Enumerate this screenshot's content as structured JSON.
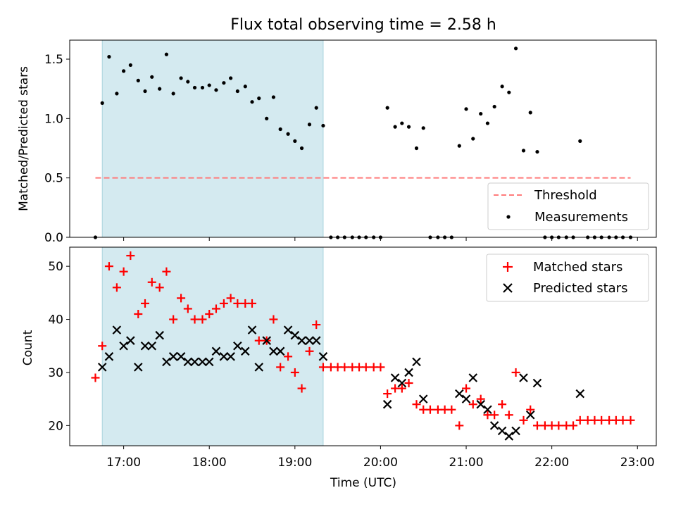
{
  "chart_data": [
    {
      "type": "scatter",
      "title": "Flux total observing time = 2.58 h",
      "ylabel": "Matched/Predicted stars",
      "xlabel": "",
      "xlim": [
        16.37,
        23.22
      ],
      "ylim": [
        0.0,
        1.66
      ],
      "yticks": [
        0.0,
        0.5,
        1.0,
        1.5
      ],
      "ytick_labels": [
        "0.0",
        "0.5",
        "1.0",
        "1.5"
      ],
      "shaded_span": [
        16.75,
        19.33
      ],
      "shade_color": "#d4eaf0",
      "legend_position": "lower-right",
      "series": [
        {
          "name": "Threshold",
          "kind": "dashed-line",
          "color": "#ff7b7b",
          "x": [
            16.67,
            22.92
          ],
          "y": [
            0.5,
            0.5
          ]
        },
        {
          "name": "Measurements",
          "kind": "points",
          "color": "#000000",
          "x": [
            16.67,
            16.75,
            16.83,
            16.92,
            17.0,
            17.08,
            17.17,
            17.25,
            17.33,
            17.42,
            17.5,
            17.58,
            17.67,
            17.75,
            17.83,
            17.92,
            18.0,
            18.08,
            18.17,
            18.25,
            18.33,
            18.42,
            18.5,
            18.58,
            18.67,
            18.75,
            18.83,
            18.92,
            19.0,
            19.08,
            19.17,
            19.25,
            19.33,
            19.42,
            19.5,
            19.58,
            19.67,
            19.75,
            19.83,
            19.92,
            20.0,
            20.08,
            20.17,
            20.25,
            20.33,
            20.42,
            20.5,
            20.58,
            20.67,
            20.75,
            20.83,
            20.92,
            21.0,
            21.08,
            21.17,
            21.25,
            21.33,
            21.42,
            21.5,
            21.58,
            21.67,
            21.75,
            21.83,
            21.92,
            22.0,
            22.08,
            22.17,
            22.25,
            22.33,
            22.42,
            22.5,
            22.58,
            22.67,
            22.75,
            22.83,
            22.92
          ],
          "y": [
            0.0,
            1.13,
            1.52,
            1.21,
            1.4,
            1.45,
            1.32,
            1.23,
            1.35,
            1.25,
            1.54,
            1.21,
            1.34,
            1.31,
            1.26,
            1.26,
            1.28,
            1.24,
            1.3,
            1.34,
            1.23,
            1.27,
            1.14,
            1.17,
            1.0,
            1.18,
            0.91,
            0.87,
            0.81,
            0.75,
            0.95,
            1.09,
            0.94,
            0.0,
            0.0,
            0.0,
            0.0,
            0.0,
            0.0,
            0.0,
            0.0,
            1.09,
            0.93,
            0.96,
            0.93,
            0.75,
            0.92,
            0.0,
            0.0,
            0.0,
            0.0,
            0.77,
            1.08,
            0.83,
            1.04,
            0.96,
            1.1,
            1.27,
            1.22,
            1.59,
            0.73,
            1.05,
            0.72,
            0.0,
            0.0,
            0.0,
            0.0,
            0.0,
            0.81,
            0.0,
            0.0,
            0.0,
            0.0,
            0.0,
            0.0,
            0.0
          ]
        }
      ]
    },
    {
      "type": "scatter",
      "title": "",
      "ylabel": "Count",
      "xlabel": "Time (UTC)",
      "xlim": [
        16.37,
        23.22
      ],
      "ylim": [
        16.2,
        53.6
      ],
      "yticks": [
        20,
        30,
        40,
        50
      ],
      "ytick_labels": [
        "20",
        "30",
        "40",
        "50"
      ],
      "xticks": [
        17,
        18,
        19,
        20,
        21,
        22,
        23
      ],
      "xtick_labels": [
        "17:00",
        "18:00",
        "19:00",
        "20:00",
        "21:00",
        "22:00",
        "23:00"
      ],
      "shaded_span": [
        16.75,
        19.33
      ],
      "shade_color": "#d4eaf0",
      "legend_position": "upper-right",
      "series": [
        {
          "name": "Matched stars",
          "kind": "plus",
          "color": "#ff0000",
          "x": [
            16.67,
            16.75,
            16.83,
            16.92,
            17.0,
            17.08,
            17.17,
            17.25,
            17.33,
            17.42,
            17.5,
            17.58,
            17.67,
            17.75,
            17.83,
            17.92,
            18.0,
            18.08,
            18.17,
            18.25,
            18.33,
            18.42,
            18.5,
            18.58,
            18.67,
            18.75,
            18.83,
            18.92,
            19.0,
            19.08,
            19.17,
            19.25,
            19.33,
            19.42,
            19.5,
            19.58,
            19.67,
            19.75,
            19.83,
            19.92,
            20.0,
            20.08,
            20.17,
            20.25,
            20.33,
            20.42,
            20.5,
            20.58,
            20.67,
            20.75,
            20.83,
            20.92,
            21.0,
            21.08,
            21.17,
            21.25,
            21.33,
            21.42,
            21.5,
            21.58,
            21.67,
            21.75,
            21.83,
            21.92,
            22.0,
            22.08,
            22.17,
            22.25,
            22.33,
            22.42,
            22.5,
            22.58,
            22.67,
            22.75,
            22.83,
            22.92
          ],
          "y": [
            29,
            35,
            50,
            46,
            49,
            52,
            41,
            43,
            47,
            46,
            49,
            40,
            44,
            42,
            40,
            40,
            41,
            42,
            43,
            44,
            43,
            43,
            43,
            36,
            36,
            40,
            31,
            33,
            30,
            27,
            34,
            39,
            31,
            31,
            31,
            31,
            31,
            31,
            31,
            31,
            31,
            26,
            27,
            27,
            28,
            24,
            23,
            23,
            23,
            23,
            23,
            20,
            27,
            24,
            25,
            22,
            22,
            24,
            22,
            30,
            21,
            23,
            20,
            20,
            20,
            20,
            20,
            20,
            21,
            21,
            21,
            21,
            21,
            21,
            21,
            21
          ]
        },
        {
          "name": "Predicted stars",
          "kind": "x",
          "color": "#000000",
          "x": [
            16.75,
            16.83,
            16.92,
            17.0,
            17.08,
            17.17,
            17.25,
            17.33,
            17.42,
            17.5,
            17.58,
            17.67,
            17.75,
            17.83,
            17.92,
            18.0,
            18.08,
            18.17,
            18.25,
            18.33,
            18.42,
            18.5,
            18.58,
            18.67,
            18.75,
            18.83,
            18.92,
            19.0,
            19.08,
            19.17,
            19.25,
            19.33,
            20.08,
            20.17,
            20.25,
            20.33,
            20.42,
            20.5,
            20.92,
            21.0,
            21.08,
            21.17,
            21.25,
            21.33,
            21.42,
            21.5,
            21.58,
            21.67,
            21.75,
            21.83,
            22.33
          ],
          "y": [
            31,
            33,
            38,
            35,
            36,
            31,
            35,
            35,
            37,
            32,
            33,
            33,
            32,
            32,
            32,
            32,
            34,
            33,
            33,
            35,
            34,
            38,
            31,
            36,
            34,
            34,
            38,
            37,
            36,
            36,
            36,
            33,
            24,
            29,
            28,
            30,
            32,
            25,
            26,
            25,
            29,
            24,
            23,
            20,
            19,
            18,
            19,
            29,
            22,
            28,
            26
          ]
        }
      ]
    }
  ]
}
